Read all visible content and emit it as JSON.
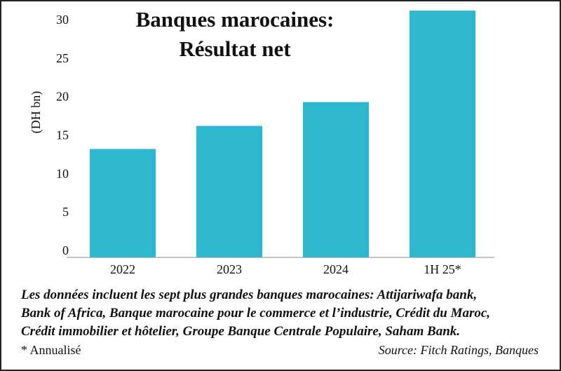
{
  "chart_data": {
    "type": "bar",
    "title_lines": [
      "Banques marocaines:",
      "Résultat net"
    ],
    "y_label": "(DH bn)",
    "categories": [
      "2022",
      "2023",
      "2024",
      "1H 25*"
    ],
    "values": [
      14.1,
      17.1,
      20.2,
      32.1
    ],
    "color": "#2eb8cf",
    "ylim": [
      0,
      32.2
    ],
    "yticks": [
      0,
      5,
      10,
      15,
      20,
      25,
      30
    ],
    "grid": false,
    "note_lines": [
      "Les données incluent les sept plus grandes banques marocaines: Attijariwafa bank,",
      "Bank of Africa, Banque marocaine pour le commerce et l’industrie, Crédit du Maroc,",
      "Crédit immobilier et hôtelier, Groupe Banque Centrale Populaire, Saham Bank."
    ],
    "footnote": "* Annualisé",
    "source": "Source: Fitch Ratings, Banques"
  }
}
